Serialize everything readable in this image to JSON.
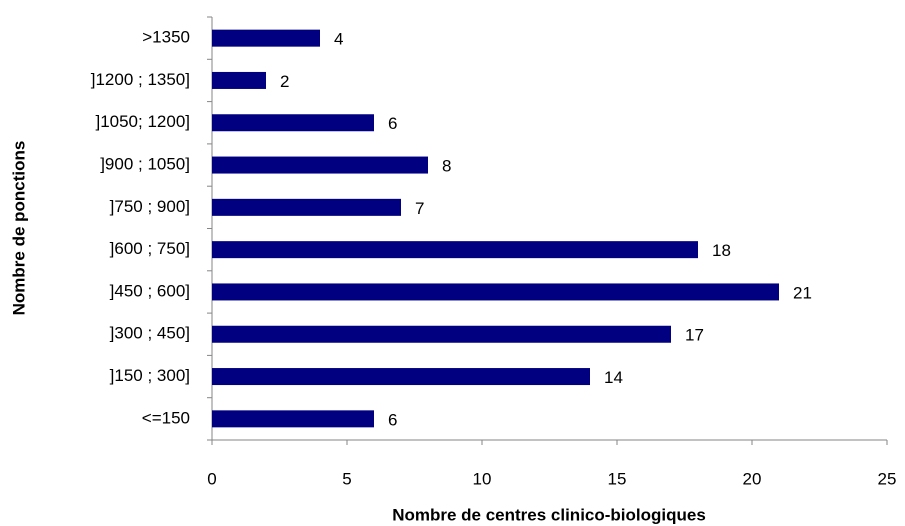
{
  "chart_data": {
    "type": "hbar",
    "xlabel": "Nombre de centres clinico-biologiques",
    "ylabel": "Nombre de ponctions",
    "categories": [
      "<=150",
      "]150 ; 300]",
      "]300 ; 450]",
      "]450 ; 600]",
      "]600 ; 750]",
      "]750 ; 900]",
      "]900 ; 1050]",
      "]1050; 1200]",
      "]1200 ; 1350]",
      ">1350"
    ],
    "values": [
      6,
      14,
      17,
      21,
      18,
      7,
      8,
      6,
      2,
      4
    ],
    "color": "#000080",
    "xlim": [
      0,
      25
    ],
    "xticks": [
      0,
      5,
      10,
      15,
      20,
      25
    ],
    "grid": false
  }
}
